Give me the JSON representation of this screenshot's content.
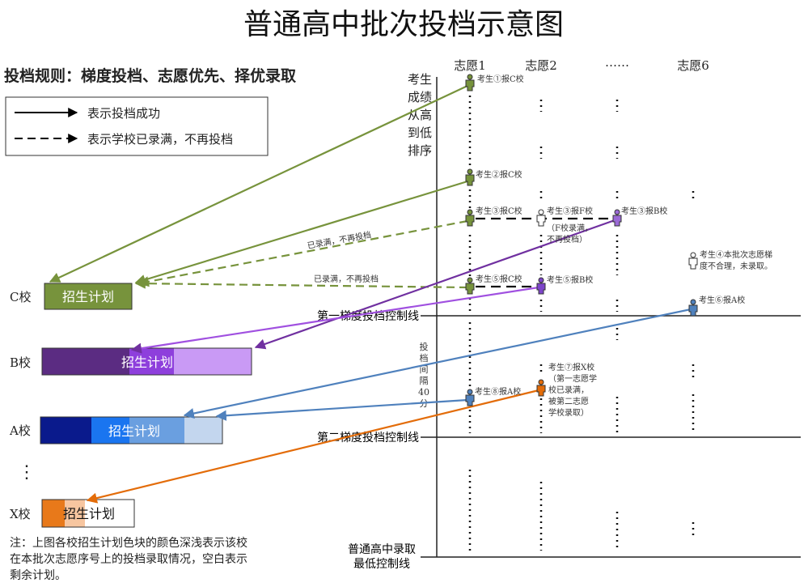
{
  "title": "普通高中批次投档示意图",
  "rule": "投档规则：梯度投档、志愿优先、择优录取",
  "legend": {
    "solid": "表示投档成功",
    "dashed": "表示学校已录满，不再投档"
  },
  "axis_label": [
    "考生",
    "成绩",
    "从高",
    "到低",
    "排序"
  ],
  "columns": [
    "志愿1",
    "志愿2",
    "……",
    "志愿6"
  ],
  "schools": {
    "c": "C校",
    "b": "B校",
    "a": "A校",
    "more": "⋮",
    "x": "X校"
  },
  "plan_label": "招生计划",
  "lines": {
    "first": "第一梯度投档控制线",
    "second": "第二梯度投档控制线",
    "min1": "普通高中录取",
    "min2": "最低控制线"
  },
  "interval": [
    "投",
    "档",
    "间",
    "隔",
    "40",
    "分"
  ],
  "full_label": "已录满，不再投档",
  "students": {
    "s1": "考生①报C校",
    "s2": "考生②报C校",
    "s3c": "考生③报C校",
    "s3f": "考生③报F校",
    "s3f_note": [
      "（F校录满，",
      "不再投档）"
    ],
    "s3b": "考生③报B校",
    "s4": [
      "考生④本批次志愿梯",
      "度不合理，未录取。"
    ],
    "s5c": "考生⑤报C校",
    "s5b": "考生⑤报B校",
    "s6": "考生⑥报A校",
    "s7": [
      "考生⑦报X校",
      "（第一志愿学",
      "校已录满，",
      "被第二志愿",
      "学校录取）"
    ],
    "s8": "考生⑧报A校"
  },
  "note": [
    "注：上图各校招生计划色块的颜色深浅表示该校",
    "在本批次志愿序号上的投档录取情况，空白表示",
    "剩余计划。"
  ],
  "colors": {
    "green": "#77933c",
    "purple": "#7030a0",
    "blue": "#4f81bd",
    "orange": "#e36c09"
  }
}
